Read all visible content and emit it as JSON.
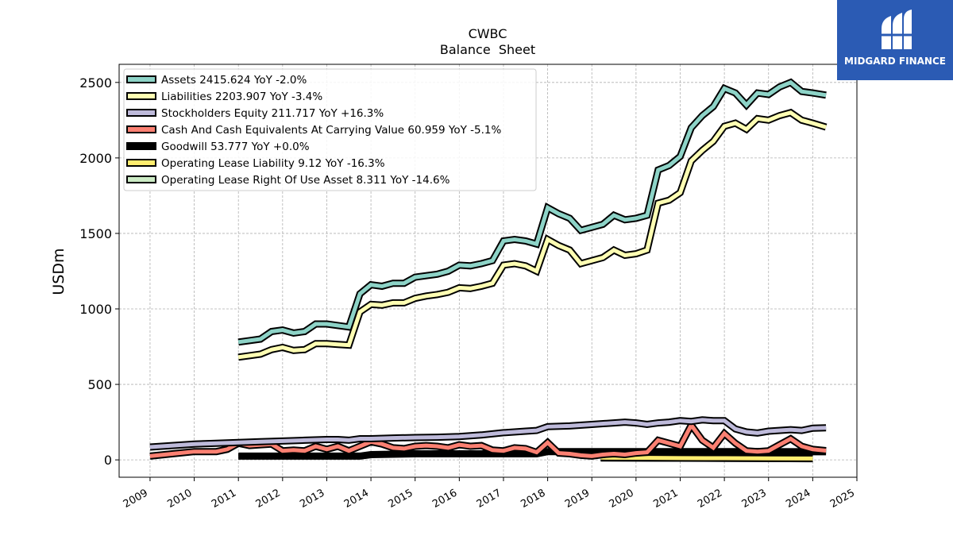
{
  "chart_data": {
    "type": "line",
    "title": "CWBC",
    "subtitle": "Balance  Sheet",
    "ylabel": "USDm",
    "xlabel": "",
    "xlim": [
      2008.3,
      2025.0
    ],
    "ylim": [
      -115,
      2620
    ],
    "x_ticks": [
      2009,
      2010,
      2011,
      2012,
      2013,
      2014,
      2015,
      2016,
      2017,
      2018,
      2019,
      2020,
      2021,
      2022,
      2023,
      2024,
      2025
    ],
    "y_ticks": [
      0,
      500,
      1000,
      1500,
      2000,
      2500
    ],
    "grid": true,
    "legend_position": "top-left",
    "series": [
      {
        "name": "Assets",
        "legend_label": "Assets  2415.624 YoY -2.0%",
        "color": "#8dd3c7",
        "x": [
          2011.0,
          2011.25,
          2011.5,
          2011.75,
          2012.0,
          2012.25,
          2012.5,
          2012.75,
          2013.0,
          2013.25,
          2013.5,
          2013.75,
          2014.0,
          2014.25,
          2014.5,
          2014.75,
          2015.0,
          2015.25,
          2015.5,
          2015.75,
          2016.0,
          2016.25,
          2016.5,
          2016.75,
          2017.0,
          2017.25,
          2017.5,
          2017.75,
          2018.0,
          2018.25,
          2018.5,
          2018.75,
          2019.0,
          2019.25,
          2019.5,
          2019.75,
          2020.0,
          2020.25,
          2020.5,
          2020.75,
          2021.0,
          2021.25,
          2021.5,
          2021.75,
          2022.0,
          2022.25,
          2022.5,
          2022.75,
          2023.0,
          2023.25,
          2023.5,
          2023.75,
          2024.0,
          2024.3
        ],
        "values": [
          780,
          790,
          800,
          850,
          860,
          840,
          850,
          900,
          900,
          890,
          880,
          1100,
          1160,
          1150,
          1170,
          1170,
          1210,
          1220,
          1230,
          1250,
          1290,
          1285,
          1300,
          1320,
          1450,
          1460,
          1450,
          1430,
          1670,
          1630,
          1600,
          1520,
          1540,
          1560,
          1620,
          1590,
          1600,
          1620,
          1920,
          1950,
          2010,
          2200,
          2280,
          2340,
          2460,
          2430,
          2350,
          2430,
          2420,
          2470,
          2500,
          2440,
          2430,
          2416
        ]
      },
      {
        "name": "Liabilities",
        "legend_label": "Liabilities  2203.907 YoY -3.4%",
        "color": "#ffffb3",
        "x": [
          2011.0,
          2011.25,
          2011.5,
          2011.75,
          2012.0,
          2012.25,
          2012.5,
          2012.75,
          2013.0,
          2013.25,
          2013.5,
          2013.75,
          2014.0,
          2014.25,
          2014.5,
          2014.75,
          2015.0,
          2015.25,
          2015.5,
          2015.75,
          2016.0,
          2016.25,
          2016.5,
          2016.75,
          2017.0,
          2017.25,
          2017.5,
          2017.75,
          2018.0,
          2018.25,
          2018.5,
          2018.75,
          2019.0,
          2019.25,
          2019.5,
          2019.75,
          2020.0,
          2020.25,
          2020.5,
          2020.75,
          2021.0,
          2021.25,
          2021.5,
          2021.75,
          2022.0,
          2022.25,
          2022.5,
          2022.75,
          2023.0,
          2023.25,
          2023.5,
          2023.75,
          2024.0,
          2024.3
        ],
        "values": [
          680,
          690,
          700,
          730,
          745,
          725,
          730,
          770,
          770,
          765,
          760,
          980,
          1030,
          1025,
          1040,
          1040,
          1070,
          1085,
          1095,
          1110,
          1140,
          1135,
          1150,
          1170,
          1290,
          1300,
          1285,
          1250,
          1460,
          1420,
          1390,
          1300,
          1320,
          1340,
          1390,
          1355,
          1365,
          1390,
          1700,
          1720,
          1770,
          1980,
          2050,
          2110,
          2210,
          2230,
          2190,
          2260,
          2250,
          2280,
          2300,
          2250,
          2230,
          2204
        ]
      },
      {
        "name": "Stockholders Equity",
        "legend_label": "Stockholders Equity  211.717 YoY +16.3%",
        "color": "#bebada",
        "x": [
          2009.0,
          2009.5,
          2010.0,
          2010.5,
          2011.0,
          2011.5,
          2012.0,
          2012.5,
          2013.0,
          2013.25,
          2013.5,
          2013.75,
          2014.0,
          2014.5,
          2015.0,
          2015.5,
          2016.0,
          2016.5,
          2017.0,
          2017.5,
          2017.75,
          2018.0,
          2018.5,
          2019.0,
          2019.5,
          2019.75,
          2020.0,
          2020.25,
          2020.5,
          2020.75,
          2021.0,
          2021.25,
          2021.5,
          2021.75,
          2022.0,
          2022.25,
          2022.5,
          2022.75,
          2023.0,
          2023.5,
          2023.75,
          2024.0,
          2024.3
        ],
        "values": [
          85,
          95,
          105,
          110,
          115,
          120,
          125,
          130,
          135,
          135,
          130,
          140,
          140,
          145,
          148,
          150,
          155,
          165,
          180,
          190,
          195,
          220,
          225,
          235,
          245,
          250,
          245,
          235,
          245,
          250,
          260,
          255,
          265,
          260,
          260,
          205,
          185,
          178,
          190,
          200,
          195,
          210,
          212
        ]
      },
      {
        "name": "Cash And Cash Equivalents At Carrying Value",
        "legend_label": "Cash And Cash Equivalents At Carrying Value  60.959 YoY -5.1%",
        "color": "#fb8072",
        "x": [
          2009.0,
          2009.5,
          2010.0,
          2010.5,
          2010.75,
          2011.0,
          2011.25,
          2011.5,
          2011.75,
          2012.0,
          2012.25,
          2012.5,
          2012.75,
          2013.0,
          2013.25,
          2013.5,
          2013.75,
          2014.0,
          2014.25,
          2014.5,
          2014.75,
          2015.0,
          2015.25,
          2015.5,
          2015.75,
          2016.0,
          2016.25,
          2016.5,
          2016.75,
          2017.0,
          2017.25,
          2017.5,
          2017.75,
          2018.0,
          2018.25,
          2018.5,
          2018.75,
          2019.0,
          2019.25,
          2019.5,
          2019.75,
          2020.0,
          2020.25,
          2020.5,
          2020.75,
          2021.0,
          2021.25,
          2021.5,
          2021.75,
          2022.0,
          2022.25,
          2022.5,
          2022.75,
          2023.0,
          2023.25,
          2023.5,
          2023.75,
          2024.0,
          2024.3
        ],
        "values": [
          25,
          40,
          55,
          55,
          70,
          110,
          95,
          100,
          105,
          60,
          65,
          60,
          90,
          70,
          90,
          60,
          90,
          120,
          105,
          80,
          75,
          90,
          95,
          90,
          80,
          100,
          90,
          95,
          65,
          60,
          80,
          75,
          50,
          115,
          45,
          40,
          30,
          25,
          35,
          40,
          35,
          45,
          50,
          130,
          110,
          90,
          230,
          130,
          80,
          175,
          110,
          60,
          55,
          60,
          100,
          140,
          90,
          70,
          61
        ]
      },
      {
        "name": "Goodwill",
        "legend_label": "Goodwill  53.777 YoY +0.0%",
        "color": "#000000",
        "x": [
          2011.0,
          2012.0,
          2013.0,
          2013.75,
          2014.0,
          2015.0,
          2016.0,
          2017.0,
          2017.75,
          2018.0,
          2019.0,
          2020.0,
          2021.0,
          2022.0,
          2023.0,
          2024.0,
          2024.3
        ],
        "values": [
          25,
          25,
          25,
          25,
          35,
          40,
          40,
          40,
          40,
          55,
          55,
          55,
          55,
          55,
          55,
          54,
          54
        ]
      },
      {
        "name": "Operating Lease Liability",
        "legend_label": "Operating Lease Liability  9.12 YoY -16.3%",
        "color": "#ffed6f",
        "x": [
          2019.2,
          2020.0,
          2021.0,
          2022.0,
          2023.0,
          2024.0
        ],
        "values": [
          15,
          14,
          12,
          11,
          10,
          9
        ]
      },
      {
        "name": "Operating Lease Right Of Use Asset",
        "legend_label": "Operating Lease Right Of Use Asset  8.311 YoY -14.6%",
        "color": "#ccebc5",
        "x": [
          2019.2,
          2020.0,
          2021.0,
          2022.0,
          2023.0,
          2024.0
        ],
        "values": [
          13,
          12,
          11,
          10,
          9,
          8
        ]
      }
    ]
  },
  "logo": {
    "text": "MIDGARD FINANCE",
    "icon": "midgard-logo-icon",
    "background": "#2b5bb4"
  }
}
